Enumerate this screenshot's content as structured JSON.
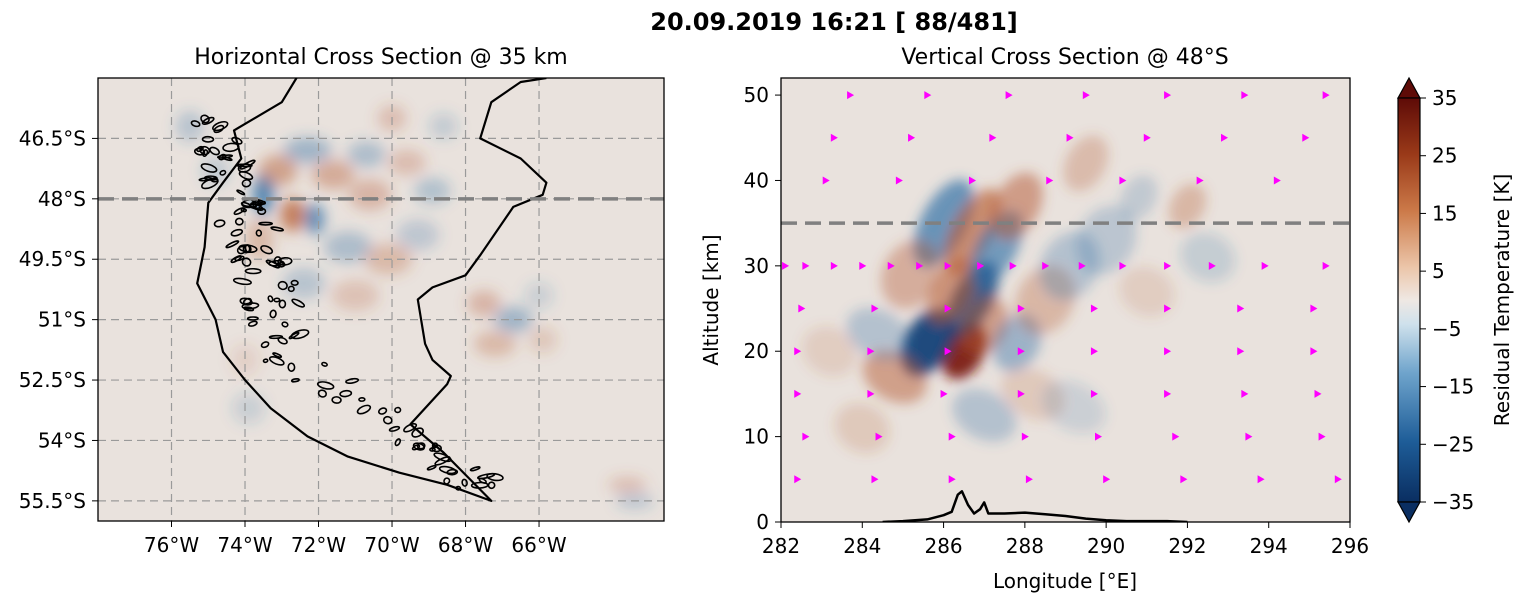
{
  "suptitle": "20.09.2019 16:21 [ 88/481]",
  "colors": {
    "background": "#e9e2dd",
    "warm": "#b5582f",
    "dark_warm": "#7a1a0c",
    "cool": "#2f6fa6",
    "dark_cool": "#0d3e75",
    "coast": "#000000",
    "grid": "#9a9a9a",
    "dashed_line": "#808080",
    "markers": "#ff00ff"
  },
  "chart_data": [
    {
      "type": "heatmap",
      "title": "Horizontal Cross Section @ 35 km",
      "xlabel": "",
      "ylabel": "",
      "xlim": [
        -78,
        -62.6
      ],
      "ylim": [
        -56,
        -45
      ],
      "x_ticks": [
        {
          "value": -76,
          "label": "76°W"
        },
        {
          "value": -74,
          "label": "74°W"
        },
        {
          "value": -72,
          "label": "72°W"
        },
        {
          "value": -70,
          "label": "70°W"
        },
        {
          "value": -68,
          "label": "68°W"
        },
        {
          "value": -66,
          "label": "66°W"
        }
      ],
      "y_ticks": [
        {
          "value": -46.5,
          "label": "46.5°S"
        },
        {
          "value": -48,
          "label": "48°S"
        },
        {
          "value": -49.5,
          "label": "49.5°S"
        },
        {
          "value": -51,
          "label": "51°S"
        },
        {
          "value": -52.5,
          "label": "52.5°S"
        },
        {
          "value": -54,
          "label": "54°S"
        },
        {
          "value": -55.5,
          "label": "55.5°S"
        }
      ],
      "grid": true,
      "reference_line": {
        "orientation": "horizontal",
        "value": -48,
        "style": "dashed"
      },
      "coastline": [
        [
          -72.6,
          -45.0
        ],
        [
          -73.0,
          -45.6
        ],
        [
          -74.3,
          -46.3
        ],
        [
          -74.1,
          -47.0
        ],
        [
          -74.6,
          -47.6
        ],
        [
          -75.0,
          -48.1
        ],
        [
          -75.1,
          -49.2
        ],
        [
          -75.3,
          -50.1
        ],
        [
          -74.8,
          -51.0
        ],
        [
          -74.6,
          -51.8
        ],
        [
          -74.0,
          -52.5
        ],
        [
          -73.3,
          -53.2
        ],
        [
          -72.3,
          -53.9
        ],
        [
          -71.2,
          -54.4
        ],
        [
          -69.8,
          -54.8
        ],
        [
          -68.5,
          -55.1
        ],
        [
          -67.3,
          -55.5
        ],
        [
          -68.6,
          -54.3
        ],
        [
          -69.5,
          -53.6
        ],
        [
          -68.5,
          -52.6
        ],
        [
          -68.4,
          -52.4
        ],
        [
          -68.9,
          -52.0
        ],
        [
          -69.1,
          -51.6
        ],
        [
          -69.3,
          -50.5
        ],
        [
          -68.9,
          -50.2
        ],
        [
          -68.0,
          -49.9
        ],
        [
          -67.6,
          -49.4
        ],
        [
          -66.7,
          -48.2
        ],
        [
          -65.9,
          -47.9
        ],
        [
          -65.8,
          -47.6
        ],
        [
          -66.5,
          -47.0
        ],
        [
          -67.6,
          -46.5
        ],
        [
          -67.3,
          -45.6
        ],
        [
          -66.5,
          -45.1
        ],
        [
          -65.8,
          -45.0
        ]
      ],
      "features": [
        {
          "x": -73.5,
          "y": -47.9,
          "amp": -2.4,
          "sx": 0.22,
          "sy": 0.38
        },
        {
          "x": -72.7,
          "y": -48.4,
          "amp": 2.2,
          "sx": 0.26,
          "sy": 0.32
        },
        {
          "x": -72.1,
          "y": -48.5,
          "amp": -2.2,
          "sx": 0.2,
          "sy": 0.3
        },
        {
          "x": -73.1,
          "y": -47.3,
          "amp": 1.4,
          "sx": 0.4,
          "sy": 0.3
        },
        {
          "x": -72.3,
          "y": -46.8,
          "amp": -1.2,
          "sx": 0.5,
          "sy": 0.25
        },
        {
          "x": -71.6,
          "y": -47.4,
          "amp": 1.2,
          "sx": 0.45,
          "sy": 0.28
        },
        {
          "x": -70.7,
          "y": -46.9,
          "amp": -1.0,
          "sx": 0.4,
          "sy": 0.25
        },
        {
          "x": -70.6,
          "y": -47.9,
          "amp": 1.0,
          "sx": 0.45,
          "sy": 0.3
        },
        {
          "x": -69.6,
          "y": -47.1,
          "amp": 0.8,
          "sx": 0.4,
          "sy": 0.25
        },
        {
          "x": -68.9,
          "y": -47.8,
          "amp": -0.9,
          "sx": 0.38,
          "sy": 0.25
        },
        {
          "x": -71.2,
          "y": -49.2,
          "amp": -1.0,
          "sx": 0.5,
          "sy": 0.3
        },
        {
          "x": -70.1,
          "y": -49.5,
          "amp": 0.9,
          "sx": 0.5,
          "sy": 0.3
        },
        {
          "x": -69.3,
          "y": -48.9,
          "amp": -0.7,
          "sx": 0.45,
          "sy": 0.3
        },
        {
          "x": -71.0,
          "y": -50.4,
          "amp": 0.7,
          "sx": 0.5,
          "sy": 0.3
        },
        {
          "x": -72.4,
          "y": -50.1,
          "amp": -0.8,
          "sx": 0.45,
          "sy": 0.3
        },
        {
          "x": -73.6,
          "y": -49.0,
          "amp": 0.9,
          "sx": 0.3,
          "sy": 0.4
        },
        {
          "x": -66.7,
          "y": -51.0,
          "amp": -1.2,
          "sx": 0.4,
          "sy": 0.25
        },
        {
          "x": -67.5,
          "y": -50.6,
          "amp": 1.0,
          "sx": 0.35,
          "sy": 0.25
        },
        {
          "x": -67.2,
          "y": -51.6,
          "amp": 0.9,
          "sx": 0.45,
          "sy": 0.25
        },
        {
          "x": -65.9,
          "y": -51.5,
          "amp": 0.6,
          "sx": 0.3,
          "sy": 0.25
        },
        {
          "x": -66.0,
          "y": -50.4,
          "amp": -0.5,
          "sx": 0.3,
          "sy": 0.25
        },
        {
          "x": -75.5,
          "y": -46.2,
          "amp": -0.8,
          "sx": 0.3,
          "sy": 0.3
        },
        {
          "x": -74.8,
          "y": -47.3,
          "amp": -0.6,
          "sx": 0.3,
          "sy": 0.3
        },
        {
          "x": -70.0,
          "y": -46.0,
          "amp": 0.8,
          "sx": 0.3,
          "sy": 0.25
        },
        {
          "x": -68.6,
          "y": -46.2,
          "amp": -0.6,
          "sx": 0.3,
          "sy": 0.25
        },
        {
          "x": -63.6,
          "y": -55.1,
          "amp": 0.8,
          "sx": 0.4,
          "sy": 0.15
        },
        {
          "x": -63.4,
          "y": -55.5,
          "amp": -0.8,
          "sx": 0.4,
          "sy": 0.15
        },
        {
          "x": -73.9,
          "y": -53.2,
          "amp": -0.5,
          "sx": 0.35,
          "sy": 0.3
        },
        {
          "x": -74.0,
          "y": -52.0,
          "amp": 0.4,
          "sx": 0.3,
          "sy": 0.3
        }
      ]
    },
    {
      "type": "heatmap",
      "title": "Vertical Cross Section @ 48°S",
      "xlabel": "Longitude [°E]",
      "ylabel": "Altitude [km]",
      "xlim": [
        282,
        296
      ],
      "ylim": [
        0,
        52
      ],
      "x_ticks": [
        {
          "value": 282,
          "label": "282"
        },
        {
          "value": 284,
          "label": "284"
        },
        {
          "value": 286,
          "label": "286"
        },
        {
          "value": 288,
          "label": "288"
        },
        {
          "value": 290,
          "label": "290"
        },
        {
          "value": 292,
          "label": "292"
        },
        {
          "value": 294,
          "label": "294"
        },
        {
          "value": 296,
          "label": "296"
        }
      ],
      "y_ticks": [
        {
          "value": 0,
          "label": "0"
        },
        {
          "value": 10,
          "label": "10"
        },
        {
          "value": 20,
          "label": "20"
        },
        {
          "value": 30,
          "label": "30"
        },
        {
          "value": 40,
          "label": "40"
        },
        {
          "value": 50,
          "label": "50"
        }
      ],
      "grid": false,
      "reference_line": {
        "orientation": "horizontal",
        "value": 35,
        "style": "dashed"
      },
      "topography": [
        [
          284.5,
          0.0
        ],
        [
          285.0,
          0.1
        ],
        [
          285.6,
          0.3
        ],
        [
          286.0,
          0.8
        ],
        [
          286.2,
          1.2
        ],
        [
          286.35,
          3.2
        ],
        [
          286.45,
          3.6
        ],
        [
          286.6,
          2.0
        ],
        [
          286.75,
          1.0
        ],
        [
          286.9,
          1.5
        ],
        [
          287.0,
          2.3
        ],
        [
          287.1,
          1.0
        ],
        [
          287.5,
          1.0
        ],
        [
          288.0,
          1.1
        ],
        [
          288.5,
          0.9
        ],
        [
          289.0,
          0.7
        ],
        [
          289.5,
          0.4
        ],
        [
          290.0,
          0.2
        ],
        [
          290.5,
          0.1
        ],
        [
          291.0,
          0.1
        ],
        [
          291.5,
          0.1
        ],
        [
          292.0,
          0.0
        ]
      ],
      "features": [
        {
          "x": 286.5,
          "y": 20.0,
          "amp": 3.3,
          "sx": 0.35,
          "sy": 2.5
        },
        {
          "x": 285.6,
          "y": 21.0,
          "amp": -3.0,
          "sx": 0.4,
          "sy": 3.0
        },
        {
          "x": 286.7,
          "y": 26.0,
          "amp": -2.6,
          "sx": 0.35,
          "sy": 3.5
        },
        {
          "x": 286.0,
          "y": 35.0,
          "amp": -2.2,
          "sx": 0.4,
          "sy": 4.0
        },
        {
          "x": 286.7,
          "y": 34.0,
          "amp": 2.0,
          "sx": 0.35,
          "sy": 4.0
        },
        {
          "x": 286.2,
          "y": 27.0,
          "amp": 1.8,
          "sx": 0.35,
          "sy": 3.0
        },
        {
          "x": 287.3,
          "y": 32.0,
          "amp": -2.0,
          "sx": 0.35,
          "sy": 3.5
        },
        {
          "x": 287.8,
          "y": 37.0,
          "amp": 1.6,
          "sx": 0.4,
          "sy": 3.0
        },
        {
          "x": 287.0,
          "y": 23.0,
          "amp": 1.5,
          "sx": 0.4,
          "sy": 2.5
        },
        {
          "x": 287.8,
          "y": 21.0,
          "amp": -1.3,
          "sx": 0.4,
          "sy": 2.5
        },
        {
          "x": 284.8,
          "y": 17.0,
          "amp": 1.5,
          "sx": 0.6,
          "sy": 2.0
        },
        {
          "x": 284.4,
          "y": 22.0,
          "amp": -0.9,
          "sx": 0.6,
          "sy": 2.0
        },
        {
          "x": 285.2,
          "y": 29.0,
          "amp": 1.2,
          "sx": 0.5,
          "sy": 3.0
        },
        {
          "x": 288.5,
          "y": 26.0,
          "amp": 1.0,
          "sx": 0.5,
          "sy": 3.0
        },
        {
          "x": 289.1,
          "y": 30.0,
          "amp": -0.9,
          "sx": 0.5,
          "sy": 3.0
        },
        {
          "x": 290.0,
          "y": 33.0,
          "amp": -0.8,
          "sx": 0.5,
          "sy": 3.0
        },
        {
          "x": 287.0,
          "y": 12.5,
          "amp": -0.9,
          "sx": 0.6,
          "sy": 2.0
        },
        {
          "x": 288.2,
          "y": 15.0,
          "amp": 0.6,
          "sx": 0.6,
          "sy": 2.0
        },
        {
          "x": 289.2,
          "y": 13.5,
          "amp": -0.5,
          "sx": 0.6,
          "sy": 2.0
        },
        {
          "x": 292.0,
          "y": 37.0,
          "amp": 1.0,
          "sx": 0.3,
          "sy": 2.0
        },
        {
          "x": 290.8,
          "y": 38.0,
          "amp": -0.7,
          "sx": 0.3,
          "sy": 2.0
        },
        {
          "x": 289.5,
          "y": 42.0,
          "amp": 0.9,
          "sx": 0.35,
          "sy": 2.5
        },
        {
          "x": 292.5,
          "y": 31.0,
          "amp": -0.6,
          "sx": 0.5,
          "sy": 2.0
        },
        {
          "x": 291.0,
          "y": 27.0,
          "amp": 0.5,
          "sx": 0.5,
          "sy": 2.0
        },
        {
          "x": 284.0,
          "y": 11.0,
          "amp": 0.6,
          "sx": 0.5,
          "sy": 2.0
        },
        {
          "x": 283.2,
          "y": 20.0,
          "amp": 0.5,
          "sx": 0.5,
          "sy": 2.0
        }
      ],
      "markers": [
        [
          283.7,
          50
        ],
        [
          285.6,
          50
        ],
        [
          287.6,
          50
        ],
        [
          289.5,
          50
        ],
        [
          291.5,
          50
        ],
        [
          293.4,
          50
        ],
        [
          295.4,
          50
        ],
        [
          283.3,
          45
        ],
        [
          285.2,
          45
        ],
        [
          287.2,
          45
        ],
        [
          289.1,
          45
        ],
        [
          291.0,
          45
        ],
        [
          292.9,
          45
        ],
        [
          294.9,
          45
        ],
        [
          283.1,
          40
        ],
        [
          284.9,
          40
        ],
        [
          286.7,
          40
        ],
        [
          288.6,
          40
        ],
        [
          290.4,
          40
        ],
        [
          292.3,
          40
        ],
        [
          294.2,
          40
        ],
        [
          282.1,
          30
        ],
        [
          282.6,
          30
        ],
        [
          283.3,
          30
        ],
        [
          284.0,
          30
        ],
        [
          284.7,
          30
        ],
        [
          285.4,
          30
        ],
        [
          286.1,
          30
        ],
        [
          286.9,
          30
        ],
        [
          287.7,
          30
        ],
        [
          288.5,
          30
        ],
        [
          289.4,
          30
        ],
        [
          290.4,
          30
        ],
        [
          291.5,
          30
        ],
        [
          292.6,
          30
        ],
        [
          293.9,
          30
        ],
        [
          295.4,
          30
        ],
        [
          282.5,
          25
        ],
        [
          284.3,
          25
        ],
        [
          286.1,
          25
        ],
        [
          287.9,
          25
        ],
        [
          289.7,
          25
        ],
        [
          291.5,
          25
        ],
        [
          293.3,
          25
        ],
        [
          295.1,
          25
        ],
        [
          282.4,
          20
        ],
        [
          284.2,
          20
        ],
        [
          286.1,
          20
        ],
        [
          287.9,
          20
        ],
        [
          289.7,
          20
        ],
        [
          291.5,
          20
        ],
        [
          293.3,
          20
        ],
        [
          295.1,
          20
        ],
        [
          282.4,
          15
        ],
        [
          284.2,
          15
        ],
        [
          286.0,
          15
        ],
        [
          287.9,
          15
        ],
        [
          289.7,
          15
        ],
        [
          291.5,
          15
        ],
        [
          293.4,
          15
        ],
        [
          295.2,
          15
        ],
        [
          282.6,
          10
        ],
        [
          284.4,
          10
        ],
        [
          286.2,
          10
        ],
        [
          288.0,
          10
        ],
        [
          289.8,
          10
        ],
        [
          291.7,
          10
        ],
        [
          293.5,
          10
        ],
        [
          295.3,
          10
        ],
        [
          282.4,
          5
        ],
        [
          284.3,
          5
        ],
        [
          286.2,
          5
        ],
        [
          288.1,
          5
        ],
        [
          290.0,
          5
        ],
        [
          291.9,
          5
        ],
        [
          293.8,
          5
        ],
        [
          295.7,
          5
        ]
      ]
    },
    {
      "type": "colorbar",
      "label": "Residual Temperature [K]",
      "range": [
        -35,
        35
      ],
      "ticks": [
        {
          "value": 35,
          "label": "35"
        },
        {
          "value": 25,
          "label": "25"
        },
        {
          "value": 15,
          "label": "15"
        },
        {
          "value": 5,
          "label": "5"
        },
        {
          "value": -5,
          "label": "−5"
        },
        {
          "value": -15,
          "label": "−15"
        },
        {
          "value": -25,
          "label": "−25"
        },
        {
          "value": -35,
          "label": "−35"
        }
      ]
    }
  ]
}
